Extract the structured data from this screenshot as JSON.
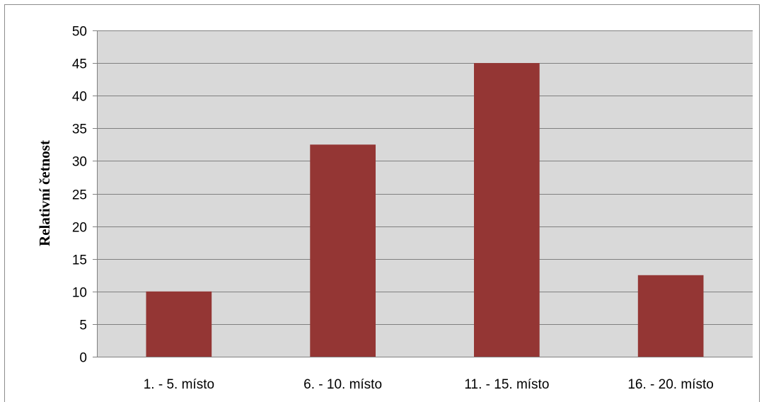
{
  "chart_data": {
    "type": "bar",
    "categories": [
      "1. - 5. místo",
      "6. - 10. místo",
      "11. - 15. místo",
      "16. - 20. místo"
    ],
    "values": [
      10,
      32.5,
      45,
      12.5
    ],
    "title": "",
    "xlabel": "",
    "ylabel": "Relativní četnost",
    "ylim": [
      0,
      50
    ],
    "yticks": [
      0,
      5,
      10,
      15,
      20,
      25,
      30,
      35,
      40,
      45,
      50
    ],
    "grid": true,
    "legend": "none",
    "colors": {
      "bar": "#943634",
      "plot_background": "#d9d9d9",
      "gridline": "#808080"
    }
  }
}
